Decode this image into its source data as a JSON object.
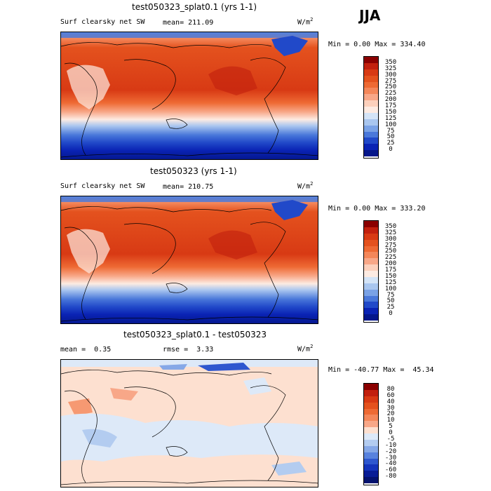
{
  "season": "JJA",
  "panels": [
    {
      "title": "test050323_splat0.1 (yrs 1-1)",
      "left_label": "Surf clearsky net SW",
      "stat_label": "mean=",
      "stat_value": "211.09",
      "units": "W/m",
      "units_exp": "2",
      "minmax": "Min =    0.00 Max = 334.40"
    },
    {
      "title": "test050323 (yrs 1-1)",
      "left_label": "Surf clearsky net SW",
      "stat_label": "mean=",
      "stat_value": "210.75",
      "units": "W/m",
      "units_exp": "2",
      "minmax": "Min =    0.00 Max = 333.20"
    },
    {
      "title": "test050323_splat0.1 - test050323",
      "mean_label": "mean =",
      "mean_value": "0.35",
      "rmse_label": "rmse =",
      "rmse_value": "3.33",
      "units": "W/m",
      "units_exp": "2",
      "minmax": "Min = -40.77 Max =  45.34"
    }
  ],
  "colorbar_abs": {
    "labels": [
      "350",
      "325",
      "300",
      "275",
      "250",
      "225",
      "200",
      "175",
      "150",
      "125",
      "100",
      "75",
      "50",
      "25",
      "0"
    ],
    "colors": [
      "#8b0000",
      "#c2200e",
      "#d83a14",
      "#e4521e",
      "#ee6a34",
      "#f4875a",
      "#f8a788",
      "#fcd0bc",
      "#fdebe2",
      "#d4e4f7",
      "#a9c6ef",
      "#7aa2e6",
      "#4a78da",
      "#2149c9",
      "#0a23b4",
      "#04168a"
    ]
  },
  "colorbar_diff": {
    "labels": [
      "80",
      "60",
      "40",
      "30",
      "20",
      "10",
      "5",
      "0",
      "-5",
      "-10",
      "-20",
      "-30",
      "-40",
      "-60",
      "-80"
    ],
    "colors": [
      "#8b0000",
      "#c2200e",
      "#d83a14",
      "#e4521e",
      "#ee6a34",
      "#f4875a",
      "#f8a788",
      "#fde0d0",
      "#dde9f8",
      "#b3ccf0",
      "#86a8e7",
      "#5882de",
      "#2e57cf",
      "#1434bb",
      "#081c96",
      "#04126e"
    ]
  }
}
